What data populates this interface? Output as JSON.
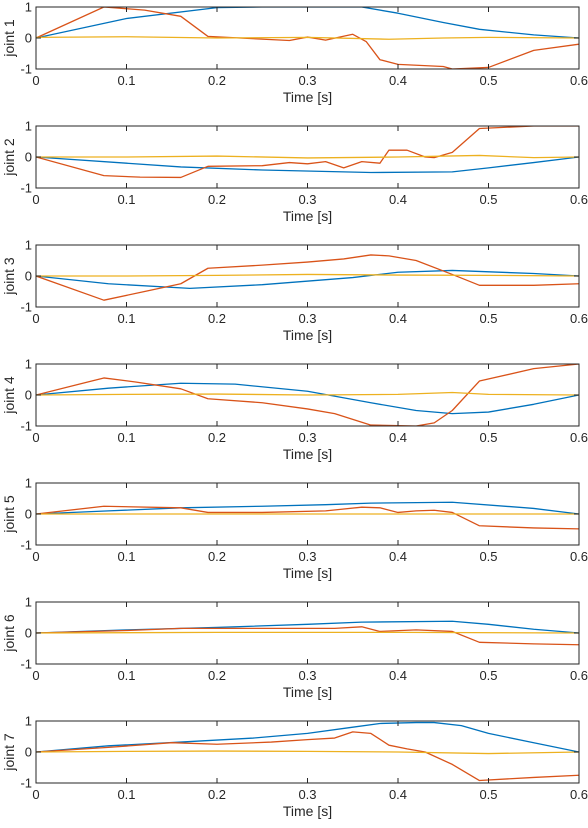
{
  "colors": {
    "series_blue": "#0072BD",
    "series_orange": "#D95319",
    "series_yellow": "#EDB120",
    "axis": "#262626",
    "background": "#ffffff"
  },
  "chart_data": [
    {
      "type": "line",
      "title": "",
      "xlabel": "Time [s]",
      "ylabel": "joint 1",
      "xlim": [
        0,
        0.6
      ],
      "ylim": [
        -1,
        1
      ],
      "xticks": [
        "0",
        "0.1",
        "0.2",
        "0.3",
        "0.4",
        "0.5",
        "0.6"
      ],
      "yticks": [
        "-1",
        "0",
        "1"
      ],
      "grid": false,
      "series": [
        {
          "color": "#0072BD",
          "x": [
            0,
            0.1,
            0.2,
            0.25,
            0.3,
            0.36,
            0.4,
            0.45,
            0.49,
            0.55,
            0.6
          ],
          "y": [
            0,
            0.63,
            0.98,
            1.0,
            1.0,
            1.0,
            0.8,
            0.5,
            0.28,
            0.1,
            0
          ]
        },
        {
          "color": "#D95319",
          "x": [
            0,
            0.075,
            0.12,
            0.16,
            0.19,
            0.28,
            0.3,
            0.32,
            0.35,
            0.365,
            0.38,
            0.4,
            0.45,
            0.46,
            0.5,
            0.55,
            0.6
          ],
          "y": [
            0,
            1.0,
            0.9,
            0.7,
            0.05,
            -0.08,
            0.03,
            -0.07,
            0.12,
            -0.12,
            -0.7,
            -0.85,
            -0.92,
            -1.0,
            -0.95,
            -0.4,
            -0.2
          ]
        },
        {
          "color": "#EDB120",
          "x": [
            0,
            0.1,
            0.2,
            0.3,
            0.39,
            0.45,
            0.5,
            0.6
          ],
          "y": [
            0.02,
            0.04,
            0.0,
            0.02,
            -0.04,
            0.0,
            0.02,
            0.0
          ]
        }
      ]
    },
    {
      "type": "line",
      "title": "",
      "xlabel": "Time [s]",
      "ylabel": "joint 2",
      "xlim": [
        0,
        0.6
      ],
      "ylim": [
        -1,
        1
      ],
      "xticks": [
        "0",
        "0.1",
        "0.2",
        "0.3",
        "0.4",
        "0.5",
        "0.6"
      ],
      "yticks": [
        "-1",
        "0",
        "1"
      ],
      "grid": false,
      "series": [
        {
          "color": "#0072BD",
          "x": [
            0,
            0.1,
            0.16,
            0.25,
            0.37,
            0.46,
            0.5,
            0.55,
            0.6
          ],
          "y": [
            0,
            -0.2,
            -0.32,
            -0.42,
            -0.5,
            -0.48,
            -0.35,
            -0.18,
            0
          ]
        },
        {
          "color": "#D95319",
          "x": [
            0,
            0.075,
            0.115,
            0.16,
            0.19,
            0.25,
            0.28,
            0.3,
            0.32,
            0.34,
            0.36,
            0.38,
            0.39,
            0.41,
            0.43,
            0.44,
            0.46,
            0.49,
            0.55,
            0.6
          ],
          "y": [
            0,
            -0.6,
            -0.65,
            -0.66,
            -0.3,
            -0.28,
            -0.18,
            -0.22,
            -0.15,
            -0.35,
            -0.15,
            -0.2,
            0.22,
            0.22,
            0.0,
            -0.02,
            0.15,
            0.92,
            1.0,
            1.0
          ]
        },
        {
          "color": "#EDB120",
          "x": [
            0,
            0.1,
            0.2,
            0.3,
            0.4,
            0.49,
            0.55,
            0.6
          ],
          "y": [
            0,
            0.0,
            0.03,
            -0.03,
            0.0,
            0.05,
            -0.02,
            0.0
          ]
        }
      ]
    },
    {
      "type": "line",
      "title": "",
      "xlabel": "Time [s]",
      "ylabel": "joint 3",
      "xlim": [
        0,
        0.6
      ],
      "ylim": [
        -1,
        1
      ],
      "xticks": [
        "0",
        "0.1",
        "0.2",
        "0.3",
        "0.4",
        "0.5",
        "0.6"
      ],
      "yticks": [
        "-1",
        "0",
        "1"
      ],
      "grid": false,
      "series": [
        {
          "color": "#0072BD",
          "x": [
            0,
            0.08,
            0.17,
            0.25,
            0.35,
            0.4,
            0.46,
            0.55,
            0.6
          ],
          "y": [
            0,
            -0.25,
            -0.4,
            -0.28,
            -0.05,
            0.12,
            0.18,
            0.08,
            0
          ]
        },
        {
          "color": "#D95319",
          "x": [
            0,
            0.075,
            0.12,
            0.16,
            0.19,
            0.25,
            0.3,
            0.34,
            0.37,
            0.39,
            0.42,
            0.46,
            0.49,
            0.55,
            0.6
          ],
          "y": [
            0,
            -0.78,
            -0.5,
            -0.25,
            0.25,
            0.35,
            0.45,
            0.55,
            0.68,
            0.65,
            0.5,
            0.05,
            -0.3,
            -0.3,
            -0.25
          ]
        },
        {
          "color": "#EDB120",
          "x": [
            0,
            0.1,
            0.2,
            0.3,
            0.4,
            0.5,
            0.6
          ],
          "y": [
            0,
            0.0,
            0.02,
            0.05,
            0.03,
            0.02,
            0.0
          ]
        }
      ]
    },
    {
      "type": "line",
      "title": "",
      "xlabel": "Time [s]",
      "ylabel": "joint 4",
      "xlim": [
        0,
        0.6
      ],
      "ylim": [
        -1,
        1
      ],
      "xticks": [
        "0",
        "0.1",
        "0.2",
        "0.3",
        "0.4",
        "0.5",
        "0.6"
      ],
      "yticks": [
        "-1",
        "0",
        "1"
      ],
      "grid": false,
      "series": [
        {
          "color": "#0072BD",
          "x": [
            0,
            0.08,
            0.16,
            0.22,
            0.3,
            0.37,
            0.42,
            0.46,
            0.5,
            0.55,
            0.6
          ],
          "y": [
            0,
            0.22,
            0.38,
            0.35,
            0.12,
            -0.25,
            -0.5,
            -0.6,
            -0.55,
            -0.3,
            0
          ]
        },
        {
          "color": "#D95319",
          "x": [
            0,
            0.075,
            0.11,
            0.16,
            0.19,
            0.25,
            0.3,
            0.33,
            0.37,
            0.42,
            0.44,
            0.46,
            0.49,
            0.55,
            0.6
          ],
          "y": [
            0,
            0.55,
            0.42,
            0.2,
            -0.12,
            -0.25,
            -0.45,
            -0.6,
            -0.97,
            -1.0,
            -0.9,
            -0.5,
            0.45,
            0.85,
            1.0
          ]
        },
        {
          "color": "#EDB120",
          "x": [
            0,
            0.1,
            0.2,
            0.3,
            0.4,
            0.46,
            0.5,
            0.6
          ],
          "y": [
            0,
            0.02,
            0.03,
            0.0,
            0.02,
            0.08,
            0.02,
            0.0
          ]
        }
      ]
    },
    {
      "type": "line",
      "title": "",
      "xlabel": "Time [s]",
      "ylabel": "joint 5",
      "xlim": [
        0,
        0.6
      ],
      "ylim": [
        -1,
        1
      ],
      "xticks": [
        "0",
        "0.1",
        "0.2",
        "0.3",
        "0.4",
        "0.5",
        "0.6"
      ],
      "yticks": [
        "-1",
        "0",
        "1"
      ],
      "grid": false,
      "series": [
        {
          "color": "#0072BD",
          "x": [
            0,
            0.08,
            0.16,
            0.25,
            0.32,
            0.37,
            0.46,
            0.55,
            0.6
          ],
          "y": [
            0,
            0.1,
            0.2,
            0.25,
            0.3,
            0.35,
            0.38,
            0.18,
            0
          ]
        },
        {
          "color": "#D95319",
          "x": [
            0,
            0.075,
            0.16,
            0.19,
            0.25,
            0.32,
            0.36,
            0.38,
            0.4,
            0.42,
            0.44,
            0.46,
            0.49,
            0.55,
            0.6
          ],
          "y": [
            0,
            0.25,
            0.2,
            0.05,
            0.05,
            0.1,
            0.22,
            0.2,
            0.05,
            0.1,
            0.12,
            0.05,
            -0.38,
            -0.45,
            -0.48
          ]
        },
        {
          "color": "#EDB120",
          "x": [
            0,
            0.2,
            0.4,
            0.6
          ],
          "y": [
            0,
            0.0,
            0.0,
            0.0
          ]
        }
      ]
    },
    {
      "type": "line",
      "title": "",
      "xlabel": "Time [s]",
      "ylabel": "joint 6",
      "xlim": [
        0,
        0.6
      ],
      "ylim": [
        -1,
        1
      ],
      "xticks": [
        "0",
        "0.1",
        "0.2",
        "0.3",
        "0.4",
        "0.5",
        "0.6"
      ],
      "yticks": [
        "-1",
        "0",
        "1"
      ],
      "grid": false,
      "series": [
        {
          "color": "#0072BD",
          "x": [
            0,
            0.1,
            0.2,
            0.3,
            0.36,
            0.46,
            0.5,
            0.55,
            0.6
          ],
          "y": [
            0,
            0.1,
            0.18,
            0.28,
            0.35,
            0.38,
            0.28,
            0.12,
            0
          ]
        },
        {
          "color": "#D95319",
          "x": [
            0,
            0.1,
            0.16,
            0.25,
            0.33,
            0.36,
            0.38,
            0.42,
            0.46,
            0.49,
            0.55,
            0.6
          ],
          "y": [
            0,
            0.08,
            0.15,
            0.15,
            0.15,
            0.2,
            0.05,
            0.1,
            0.05,
            -0.3,
            -0.35,
            -0.38
          ]
        },
        {
          "color": "#EDB120",
          "x": [
            0,
            0.2,
            0.4,
            0.6
          ],
          "y": [
            0,
            0.02,
            0.02,
            0.0
          ]
        }
      ]
    },
    {
      "type": "line",
      "title": "",
      "xlabel": "Time [s]",
      "ylabel": "joint 7",
      "xlim": [
        0,
        0.6
      ],
      "ylim": [
        -1,
        1
      ],
      "xticks": [
        "0",
        "0.1",
        "0.2",
        "0.3",
        "0.4",
        "0.5",
        "0.6"
      ],
      "yticks": [
        "-1",
        "0",
        "1"
      ],
      "grid": false,
      "series": [
        {
          "color": "#0072BD",
          "x": [
            0,
            0.08,
            0.16,
            0.24,
            0.3,
            0.35,
            0.38,
            0.42,
            0.44,
            0.47,
            0.5,
            0.55,
            0.6
          ],
          "y": [
            0,
            0.2,
            0.32,
            0.45,
            0.6,
            0.8,
            0.92,
            0.95,
            0.95,
            0.85,
            0.6,
            0.3,
            0
          ]
        },
        {
          "color": "#D95319",
          "x": [
            0,
            0.08,
            0.15,
            0.2,
            0.26,
            0.3,
            0.33,
            0.35,
            0.37,
            0.39,
            0.41,
            0.43,
            0.46,
            0.49,
            0.55,
            0.6
          ],
          "y": [
            0,
            0.15,
            0.3,
            0.25,
            0.32,
            0.4,
            0.45,
            0.65,
            0.6,
            0.22,
            0.1,
            0.0,
            -0.4,
            -0.92,
            -0.82,
            -0.75
          ]
        },
        {
          "color": "#EDB120",
          "x": [
            0,
            0.1,
            0.2,
            0.3,
            0.4,
            0.5,
            0.6
          ],
          "y": [
            0,
            0.02,
            0.03,
            0.02,
            0.0,
            -0.05,
            0.0
          ]
        }
      ]
    }
  ]
}
